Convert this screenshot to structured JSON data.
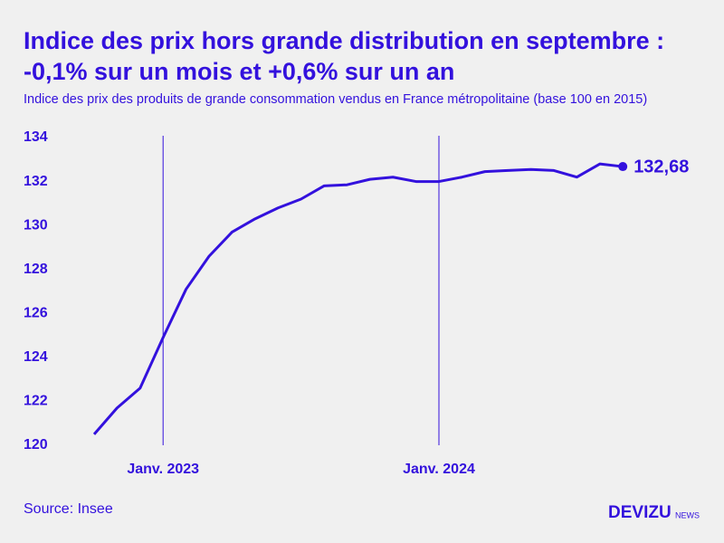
{
  "chart_data": {
    "type": "line",
    "title": "Indice des prix hors grande distribution en septembre : -0,1% sur un mois et +0,6% sur un an",
    "subtitle": "Indice des prix des produits de grande consommation vendus en France métropolitaine (base 100 en 2015)",
    "categories": [
      null,
      null,
      null,
      "Janv. 2023",
      null,
      null,
      null,
      null,
      null,
      null,
      null,
      null,
      null,
      null,
      null,
      "Janv. 2024",
      null,
      null,
      null,
      null,
      null,
      null,
      null,
      null
    ],
    "series": [
      {
        "color": "#3311dd",
        "values": [
          120.5,
          121.7,
          122.6,
          124.9,
          127.1,
          128.6,
          129.7,
          130.3,
          130.8,
          131.2,
          131.8,
          131.85,
          132.1,
          132.2,
          132.0,
          132.0,
          132.2,
          132.45,
          132.5,
          132.55,
          132.5,
          132.2,
          132.8,
          132.68
        ],
        "value_labels": [
          null,
          null,
          null,
          null,
          null,
          null,
          null,
          null,
          null,
          null,
          null,
          null,
          null,
          null,
          null,
          null,
          null,
          null,
          null,
          null,
          null,
          null,
          null,
          "132,68"
        ]
      }
    ],
    "ylim": [
      120,
      134
    ],
    "yticks": [
      120,
      122,
      124,
      126,
      128,
      130,
      132,
      134
    ],
    "source": "Source: Insee"
  },
  "logo": {
    "name": "DEVIZU",
    "suffix": "NEWS"
  }
}
